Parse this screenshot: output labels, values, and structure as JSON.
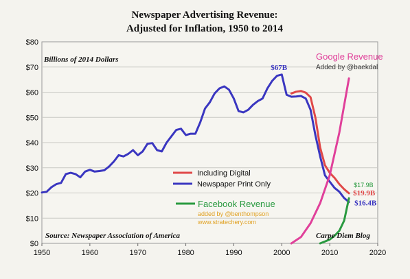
{
  "chart_data": {
    "type": "line",
    "title_line1": "Newspaper Advertising Revenue:",
    "title_line2": "Adjusted for Inflation, 1950 to 2014",
    "units_label": "Billions of 2014 Dollars",
    "xlim": [
      1950,
      2020
    ],
    "ylim": [
      0,
      80
    ],
    "x_ticks": [
      1950,
      1960,
      1970,
      1980,
      1990,
      2000,
      2010,
      2020
    ],
    "y_ticks": [
      {
        "value": 0,
        "label": "$0"
      },
      {
        "value": 10,
        "label": "$10"
      },
      {
        "value": 20,
        "label": "$20"
      },
      {
        "value": 30,
        "label": "$30"
      },
      {
        "value": 40,
        "label": "$40"
      },
      {
        "value": 50,
        "label": "$50"
      },
      {
        "value": 60,
        "label": "$60"
      },
      {
        "value": 70,
        "label": "$70"
      },
      {
        "value": 80,
        "label": "$80"
      }
    ],
    "grid": true,
    "legend": {
      "placement": "center-right",
      "entries": [
        {
          "name": "Including Digital",
          "color": "#e04848"
        },
        {
          "name": "Newspaper Print Only",
          "color": "#3a36c0"
        }
      ]
    },
    "series": [
      {
        "name": "Newspaper Print Only",
        "color": "#3a36c0",
        "x": [
          1950,
          1951,
          1952,
          1953,
          1954,
          1955,
          1956,
          1957,
          1958,
          1959,
          1960,
          1961,
          1962,
          1963,
          1964,
          1965,
          1966,
          1967,
          1968,
          1969,
          1970,
          1971,
          1972,
          1973,
          1974,
          1975,
          1976,
          1977,
          1978,
          1979,
          1980,
          1981,
          1982,
          1983,
          1984,
          1985,
          1986,
          1987,
          1988,
          1989,
          1990,
          1991,
          1992,
          1993,
          1994,
          1995,
          1996,
          1997,
          1998,
          1999,
          2000,
          2001,
          2002,
          2003,
          2004,
          2005,
          2006,
          2007,
          2008,
          2009,
          2010,
          2011,
          2012,
          2013,
          2014
        ],
        "y": [
          20.2,
          20.5,
          22.3,
          23.5,
          24,
          27.5,
          28,
          27.5,
          26.2,
          28.5,
          29.2,
          28.5,
          28.7,
          29,
          30.5,
          32.5,
          35,
          34.5,
          35.5,
          37,
          35,
          36.5,
          39.5,
          39.8,
          37,
          36.5,
          40,
          42.5,
          45,
          45.5,
          43,
          43.5,
          43.5,
          48,
          53.5,
          56,
          59.5,
          61.5,
          62.3,
          61,
          57.5,
          52.5,
          52,
          53,
          55,
          56.5,
          57.5,
          61.5,
          64.5,
          66.5,
          67,
          59,
          58.2,
          58.3,
          58.5,
          57.5,
          53,
          43,
          34.5,
          27,
          24.5,
          22,
          20.5,
          18,
          16.4
        ]
      },
      {
        "name": "Including Digital",
        "color": "#e04848",
        "x": [
          2002,
          2003,
          2004,
          2005,
          2006,
          2007,
          2008,
          2009,
          2010,
          2011,
          2012,
          2013,
          2014
        ],
        "y": [
          59.5,
          60.2,
          60.5,
          59.8,
          58,
          50,
          38,
          31,
          28,
          26,
          23.5,
          21.5,
          19.9
        ]
      },
      {
        "name": "Google Revenue",
        "color": "#e0409a",
        "x": [
          2002,
          2004,
          2006,
          2008,
          2010,
          2012,
          2014
        ],
        "y": [
          0,
          2.5,
          8,
          16,
          27,
          44,
          65.5
        ]
      },
      {
        "name": "Facebook Revenue",
        "color": "#2a9a40",
        "x": [
          2008,
          2010,
          2011,
          2012,
          2013,
          2014
        ],
        "y": [
          0,
          1.5,
          3,
          5,
          9,
          17.9
        ]
      }
    ],
    "annotations": [
      {
        "text": "$67B",
        "x": 2000,
        "y": 67,
        "color": "#3a36c0"
      },
      {
        "text": "$19.9B",
        "x": 2014,
        "y": 19.9,
        "color": "#e04848"
      },
      {
        "text": "$17.9B",
        "x": 2014,
        "y": 17.9,
        "color": "#2a9a40"
      },
      {
        "text": "$16.4B",
        "x": 2014,
        "y": 16.4,
        "color": "#3a36c0"
      }
    ],
    "overlay_labels": {
      "google_title": "Google Revenue",
      "google_credit": "Added by @baekdal",
      "facebook_title": "Facebook Revenue",
      "facebook_credit1": "added by @benthompson",
      "facebook_credit2": "www.stratechery.com"
    },
    "source": "Source: Newspaper Association of America",
    "blog": "Carpe Diem Blog"
  },
  "colors": {
    "print": "#3a36c0",
    "digital": "#e04848",
    "google": "#e0409a",
    "facebook": "#2a9a40",
    "credit_orange": "#e0a020"
  }
}
